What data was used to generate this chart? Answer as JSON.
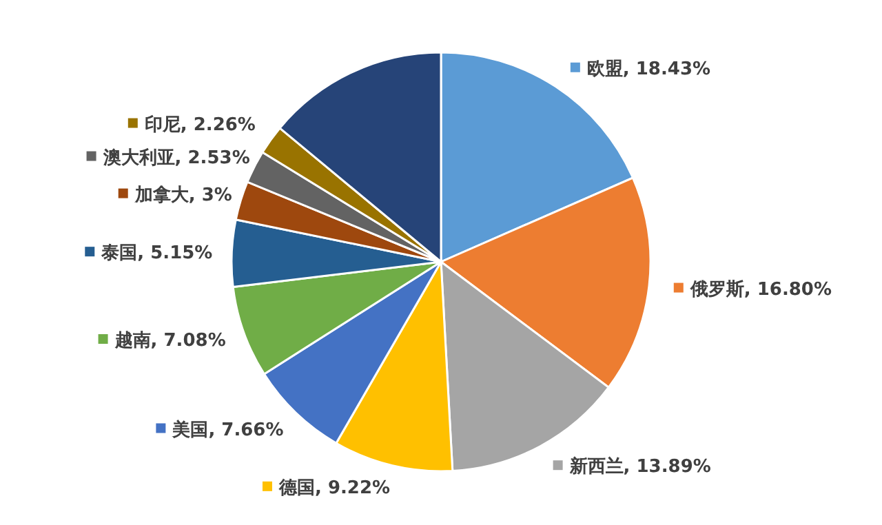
{
  "chart_data": {
    "type": "pie",
    "categories": [
      "欧盟",
      "俄罗斯",
      "新西兰",
      "德国",
      "美国",
      "越南",
      "泰国",
      "加拿大",
      "澳大利亚",
      "印尼",
      null
    ],
    "values": [
      18.43,
      16.8,
      13.89,
      9.22,
      7.66,
      7.08,
      5.15,
      3,
      2.53,
      2.26,
      13.98
    ],
    "value_labels": [
      "18.43%",
      "16.80%",
      "13.89%",
      "9.22%",
      "7.66%",
      "7.08%",
      "5.15%",
      "3%",
      "2.53%",
      "2.26%",
      null
    ],
    "colors": [
      "#5b9bd5",
      "#ed7d31",
      "#a5a5a5",
      "#ffc000",
      "#4472c4",
      "#70ad47",
      "#255e91",
      "#9e480e",
      "#636363",
      "#997300",
      "#264478"
    ],
    "legend": "left"
  }
}
